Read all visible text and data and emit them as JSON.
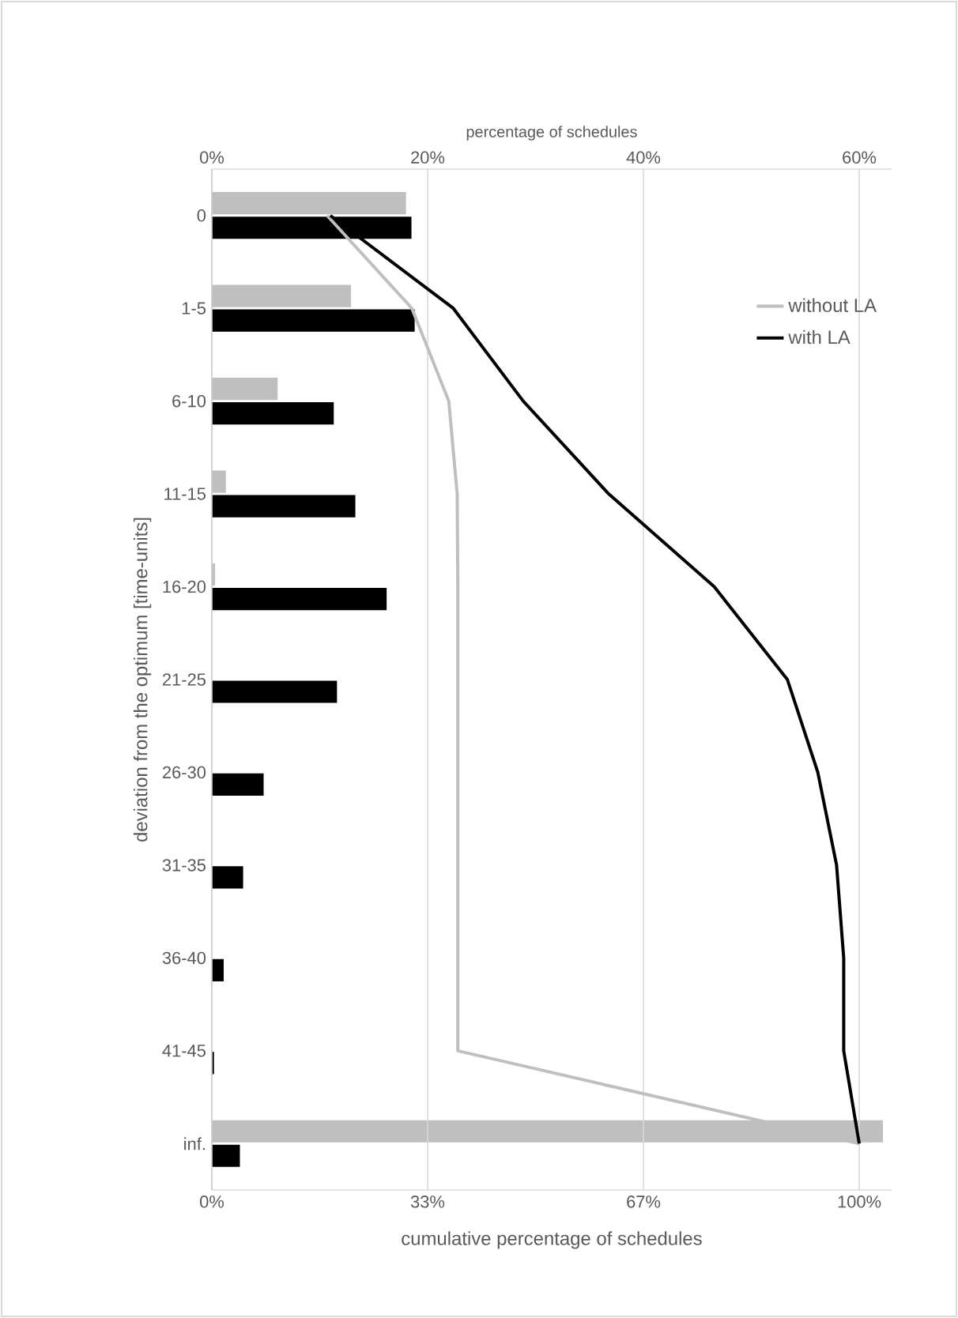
{
  "chart_data": {
    "type": "bar",
    "orientation": "horizontal",
    "x2label": "percentage of schedules",
    "xlabel": "cumulative percentage of schedules",
    "ylabel": "deviation from the optimum [time-units]",
    "categories": [
      "0",
      "1-5",
      "6-10",
      "11-15",
      "16-20",
      "21-25",
      "26-30",
      "31-35",
      "36-40",
      "41-45",
      "inf."
    ],
    "x2lim": [
      0,
      63
    ],
    "x2ticks": [
      {
        "value": 0,
        "label": "0%"
      },
      {
        "value": 20,
        "label": "20%"
      },
      {
        "value": 40,
        "label": "40%"
      },
      {
        "value": 60,
        "label": "60%"
      }
    ],
    "xlim": [
      0,
      105
    ],
    "xticks": [
      {
        "value": 0,
        "label": "0%"
      },
      {
        "value": 33.33,
        "label": "33%"
      },
      {
        "value": 66.67,
        "label": "67%"
      },
      {
        "value": 100,
        "label": "100%"
      }
    ],
    "grid": "x",
    "legend": "top right",
    "series": [
      {
        "type": "bar",
        "axis": "x2",
        "color": "#bfbfbf",
        "values": [
          18,
          12.9,
          6.1,
          1.3,
          0.3,
          0,
          0,
          0,
          0,
          0,
          62.2
        ]
      },
      {
        "type": "bar",
        "axis": "x2",
        "color": "#000000",
        "values": [
          18.5,
          18.8,
          11.3,
          13.3,
          16.2,
          11.6,
          4.8,
          2.9,
          1.1,
          0.2,
          2.6
        ]
      },
      {
        "type": "line",
        "name": "without LA",
        "color": "#bfbfbf",
        "values": [
          17.8,
          30.9,
          36.6,
          37.9,
          38,
          38,
          38,
          38,
          38,
          38,
          100
        ]
      },
      {
        "type": "line",
        "name": "with LA",
        "color": "#000000",
        "values": [
          18.3,
          37.3,
          48.1,
          61.3,
          77.6,
          88.9,
          93.6,
          96.5,
          97.6,
          97.6,
          100
        ]
      }
    ]
  }
}
